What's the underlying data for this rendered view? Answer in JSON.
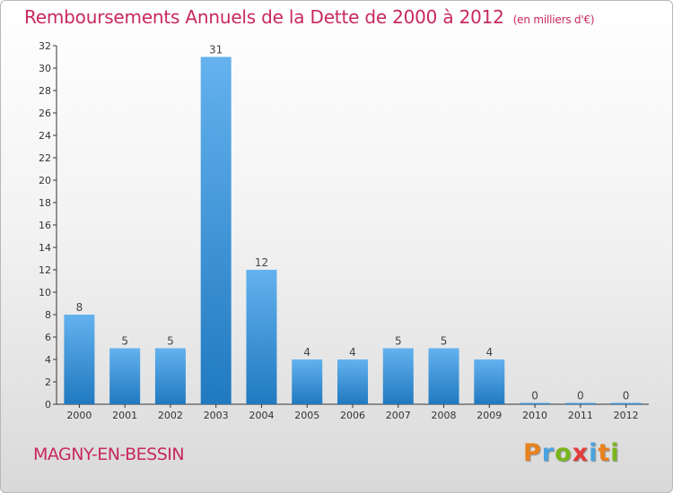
{
  "header": {
    "title": "Remboursements Annuels de la Dette de 2000 à 2012",
    "subtitle": "(en milliers d'€)"
  },
  "footer": {
    "commune": "MAGNY-EN-BESSIN",
    "logo_letters": [
      "P",
      "r",
      "o",
      "x",
      "i",
      "t",
      "i"
    ],
    "logo_colors": [
      "#e8821e",
      "#4aa3df",
      "#7ab51d",
      "#e23b3b",
      "#4aa3df",
      "#e8821e",
      "#7ab51d"
    ]
  },
  "colors": {
    "title": "#c8285e",
    "bar_top": "#64b2ee",
    "bar_bottom": "#2079c0",
    "axis": "#333333"
  },
  "chart_data": {
    "type": "bar",
    "title": "Remboursements Annuels de la Dette de 2000 à 2012",
    "subtitle": "(en milliers d'€)",
    "xlabel": "",
    "ylabel": "",
    "categories": [
      "2000",
      "2001",
      "2002",
      "2003",
      "2004",
      "2005",
      "2006",
      "2007",
      "2008",
      "2009",
      "2010",
      "2011",
      "2012"
    ],
    "values": [
      8,
      5,
      5,
      31,
      12,
      4,
      4,
      5,
      5,
      4,
      0,
      0,
      0
    ],
    "data_labels": [
      "8",
      "5",
      "5",
      "31",
      "12",
      "4",
      "4",
      "5",
      "5",
      "4",
      "0",
      "0",
      "0"
    ],
    "ylim": [
      0,
      32
    ],
    "yticks": [
      0,
      2,
      4,
      6,
      8,
      10,
      12,
      14,
      16,
      18,
      20,
      22,
      24,
      26,
      28,
      30,
      32
    ],
    "grid": false,
    "legend": "none"
  }
}
